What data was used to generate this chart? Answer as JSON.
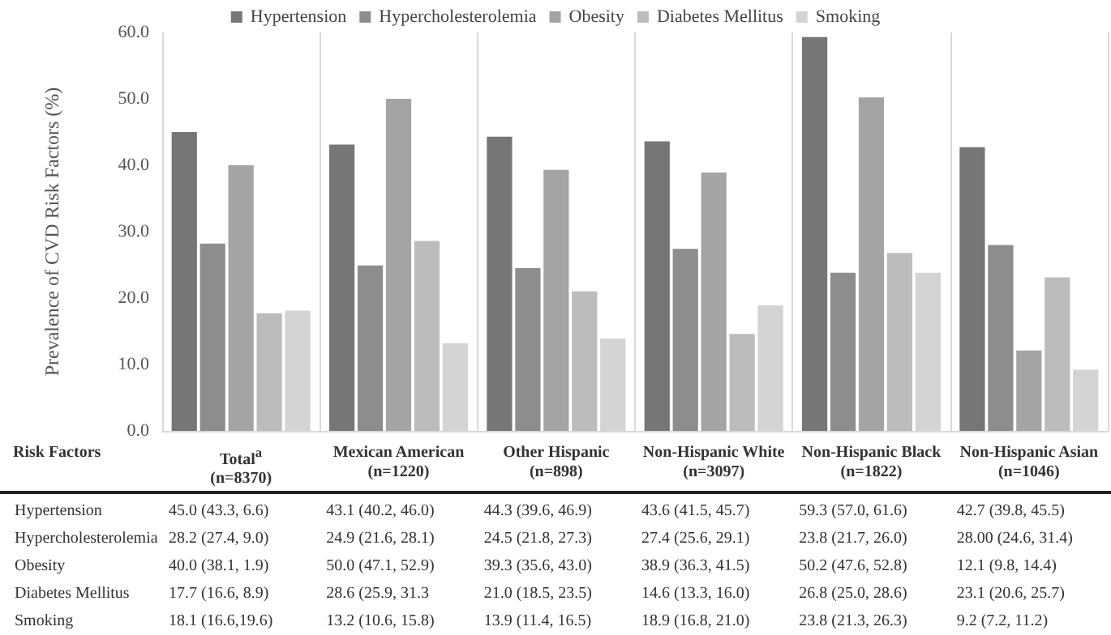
{
  "chart_data": {
    "type": "bar",
    "ylabel": "Prevalence of CVD Risk Factors (%)",
    "xlabel": "Risk Factors",
    "categories": [
      "Total$^{a}$\n(n=8370)",
      "Mexican American\n(n=1220)",
      "Other Hispanic\n(n=898)",
      "Non-Hispanic White\n(n=3097)",
      "Non-Hispanic Black\n(n=1822)",
      "Non-Hispanic Asian\n(n=1046)"
    ],
    "series": [
      {
        "name": "Hypertension",
        "color": "#767676",
        "values": [
          45.0,
          43.1,
          44.3,
          43.6,
          59.3,
          42.7
        ],
        "value_labels": [
          "45.0 (43.3, 6.6)",
          "43.1 (40.2, 46.0)",
          "44.3 (39.6, 46.9)",
          "43.6 (41.5, 45.7)",
          "59.3 (57.0, 61.6)",
          "42.7 (39.8, 45.5)"
        ]
      },
      {
        "name": "Hypercholesterolemia",
        "color": "#8d8d8d",
        "values": [
          28.2,
          24.9,
          24.5,
          27.4,
          23.8,
          28.0
        ],
        "value_labels": [
          "28.2 (27.4, 9.0)",
          "24.9 (21.6, 28.1)",
          "24.5 (21.8, 27.3)",
          "27.4 (25.6, 29.1)",
          "23.8 (21.7, 26.0)",
          "28.00 (24.6, 31.4)"
        ]
      },
      {
        "name": "Obesity",
        "color": "#a4a4a4",
        "values": [
          40.0,
          50.0,
          39.3,
          38.9,
          50.2,
          12.1
        ],
        "value_labels": [
          "40.0 (38.1, 1.9)",
          "50.0 (47.1, 52.9)",
          "39.3 (35.6, 43.0)",
          "38.9 (36.3, 41.5)",
          "50.2 (47.6, 52.8)",
          "12.1 (9.8, 14.4)"
        ]
      },
      {
        "name": "Diabetes Mellitus",
        "color": "#bcbcbc",
        "values": [
          17.7,
          28.6,
          21.0,
          14.6,
          26.8,
          23.1
        ],
        "value_labels": [
          "17.7 (16.6, 8.9)",
          "28.6 (25.9, 31.3",
          "21.0 (18.5, 23.5)",
          "14.6 (13.3, 16.0)",
          "26.8 (25.0, 28.6)",
          "23.1 (20.6, 25.7)"
        ]
      },
      {
        "name": "Smoking",
        "color": "#d4d4d4",
        "values": [
          18.1,
          13.2,
          13.9,
          18.9,
          23.8,
          9.2
        ],
        "value_labels": [
          "18.1 (16.6,19.6)",
          "13.2 (10.6, 15.8)",
          "13.9 (11.4, 16.5)",
          "18.9 (16.8, 21.0)",
          "23.8 (21.3, 26.3)",
          "9.2 (7.2, 11.2)"
        ]
      }
    ],
    "ylim": [
      0,
      60
    ],
    "yticks": [
      {
        "value": 0,
        "label": "0.0"
      },
      {
        "value": 10,
        "label": "10.0"
      },
      {
        "value": 20,
        "label": "20.0"
      },
      {
        "value": 30,
        "label": "30.0"
      },
      {
        "value": 40,
        "label": "40.0"
      },
      {
        "value": 50,
        "label": "50.0"
      },
      {
        "value": 60,
        "label": "60.0"
      }
    ],
    "grid": "x",
    "legend": "top"
  }
}
